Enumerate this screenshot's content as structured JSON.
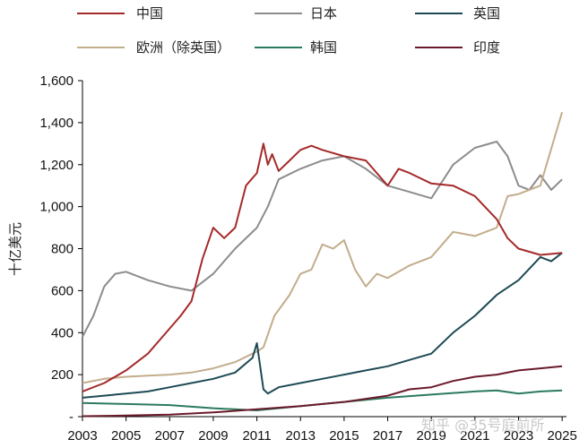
{
  "chart_data": {
    "type": "line",
    "ylabel": "十亿美元",
    "ylim": [
      0,
      1600
    ],
    "yticks": [
      {
        "value": 0,
        "label": "-"
      },
      {
        "value": 200,
        "label": "200"
      },
      {
        "value": 400,
        "label": "400"
      },
      {
        "value": 600,
        "label": "600"
      },
      {
        "value": 800,
        "label": "800"
      },
      {
        "value": 1000,
        "label": "1,000"
      },
      {
        "value": 1200,
        "label": "1,200"
      },
      {
        "value": 1400,
        "label": "1,400"
      },
      {
        "value": 1600,
        "label": "1,600"
      }
    ],
    "xlim": [
      2003,
      2025.2
    ],
    "xticks": [
      "2003",
      "2005",
      "2007",
      "2009",
      "2011",
      "2013",
      "2015",
      "2017",
      "2019",
      "2021",
      "2023",
      "2025"
    ],
    "grid": false,
    "legend_position": "top",
    "series": [
      {
        "name": "中国",
        "color": "#a52a2a",
        "x": [
          2003,
          2004,
          2005,
          2006,
          2007,
          2007.5,
          2008,
          2008.5,
          2009,
          2009.5,
          2010,
          2010.5,
          2011,
          2011.3,
          2011.5,
          2011.7,
          2012,
          2012.5,
          2013,
          2013.5,
          2014,
          2015,
          2016,
          2016.5,
          2017,
          2017.5,
          2018,
          2019,
          2020,
          2021,
          2022,
          2022.5,
          2023,
          2024,
          2025
        ],
        "y": [
          120,
          160,
          220,
          300,
          420,
          480,
          550,
          750,
          900,
          850,
          900,
          1100,
          1160,
          1300,
          1200,
          1250,
          1170,
          1220,
          1270,
          1290,
          1270,
          1240,
          1220,
          1160,
          1100,
          1180,
          1160,
          1110,
          1100,
          1050,
          940,
          850,
          800,
          770,
          780
        ]
      },
      {
        "name": "日本",
        "color": "#8c8c8c",
        "x": [
          2003,
          2003.5,
          2004,
          2004.5,
          2005,
          2006,
          2007,
          2008,
          2009,
          2010,
          2011,
          2011.5,
          2012,
          2013,
          2014,
          2015,
          2016,
          2017,
          2018,
          2019,
          2020,
          2021,
          2022,
          2022.5,
          2023,
          2023.5,
          2024,
          2024.5,
          2025
        ],
        "y": [
          380,
          480,
          620,
          680,
          690,
          650,
          620,
          600,
          680,
          800,
          900,
          1000,
          1130,
          1180,
          1220,
          1240,
          1180,
          1100,
          1070,
          1040,
          1200,
          1280,
          1310,
          1240,
          1100,
          1080,
          1150,
          1080,
          1130
        ]
      },
      {
        "name": "英国",
        "color": "#1d4a55",
        "x": [
          2003,
          2004,
          2005,
          2006,
          2007,
          2008,
          2009,
          2010,
          2010.8,
          2011,
          2011.3,
          2011.5,
          2012,
          2013,
          2014,
          2015,
          2016,
          2017,
          2018,
          2019,
          2020,
          2021,
          2022,
          2023,
          2024,
          2024.5,
          2025
        ],
        "y": [
          90,
          100,
          110,
          120,
          140,
          160,
          180,
          210,
          280,
          350,
          130,
          110,
          140,
          160,
          180,
          200,
          220,
          240,
          270,
          300,
          400,
          480,
          580,
          650,
          760,
          740,
          780
        ]
      },
      {
        "name": "欧洲（除英国）",
        "color": "#c2ad8c",
        "x": [
          2003,
          2004,
          2005,
          2006,
          2007,
          2008,
          2009,
          2010,
          2011,
          2011.3,
          2011.8,
          2012.5,
          2013,
          2013.5,
          2014,
          2014.5,
          2015,
          2015.5,
          2016,
          2016.5,
          2017,
          2018,
          2019,
          2019.5,
          2020,
          2021,
          2022,
          2022.5,
          2023,
          2024,
          2025
        ],
        "y": [
          160,
          180,
          190,
          195,
          200,
          210,
          230,
          260,
          310,
          330,
          480,
          580,
          680,
          700,
          820,
          800,
          840,
          700,
          620,
          680,
          660,
          720,
          760,
          820,
          880,
          860,
          900,
          1050,
          1060,
          1100,
          1450
        ]
      },
      {
        "name": "韩国",
        "color": "#2b7a5e",
        "x": [
          2003,
          2005,
          2007,
          2009,
          2011,
          2013,
          2015,
          2017,
          2019,
          2021,
          2022,
          2023,
          2024,
          2025
        ],
        "y": [
          65,
          60,
          55,
          40,
          30,
          50,
          70,
          90,
          105,
          120,
          125,
          110,
          120,
          125
        ]
      },
      {
        "name": "印度",
        "color": "#6b1a2a",
        "x": [
          2003,
          2005,
          2007,
          2009,
          2011,
          2013,
          2015,
          2017,
          2018,
          2019,
          2020,
          2021,
          2022,
          2023,
          2024,
          2025
        ],
        "y": [
          2,
          5,
          10,
          20,
          35,
          50,
          70,
          100,
          130,
          140,
          170,
          190,
          200,
          220,
          230,
          240
        ]
      }
    ]
  },
  "watermark": "知乎 @35号庭前所"
}
